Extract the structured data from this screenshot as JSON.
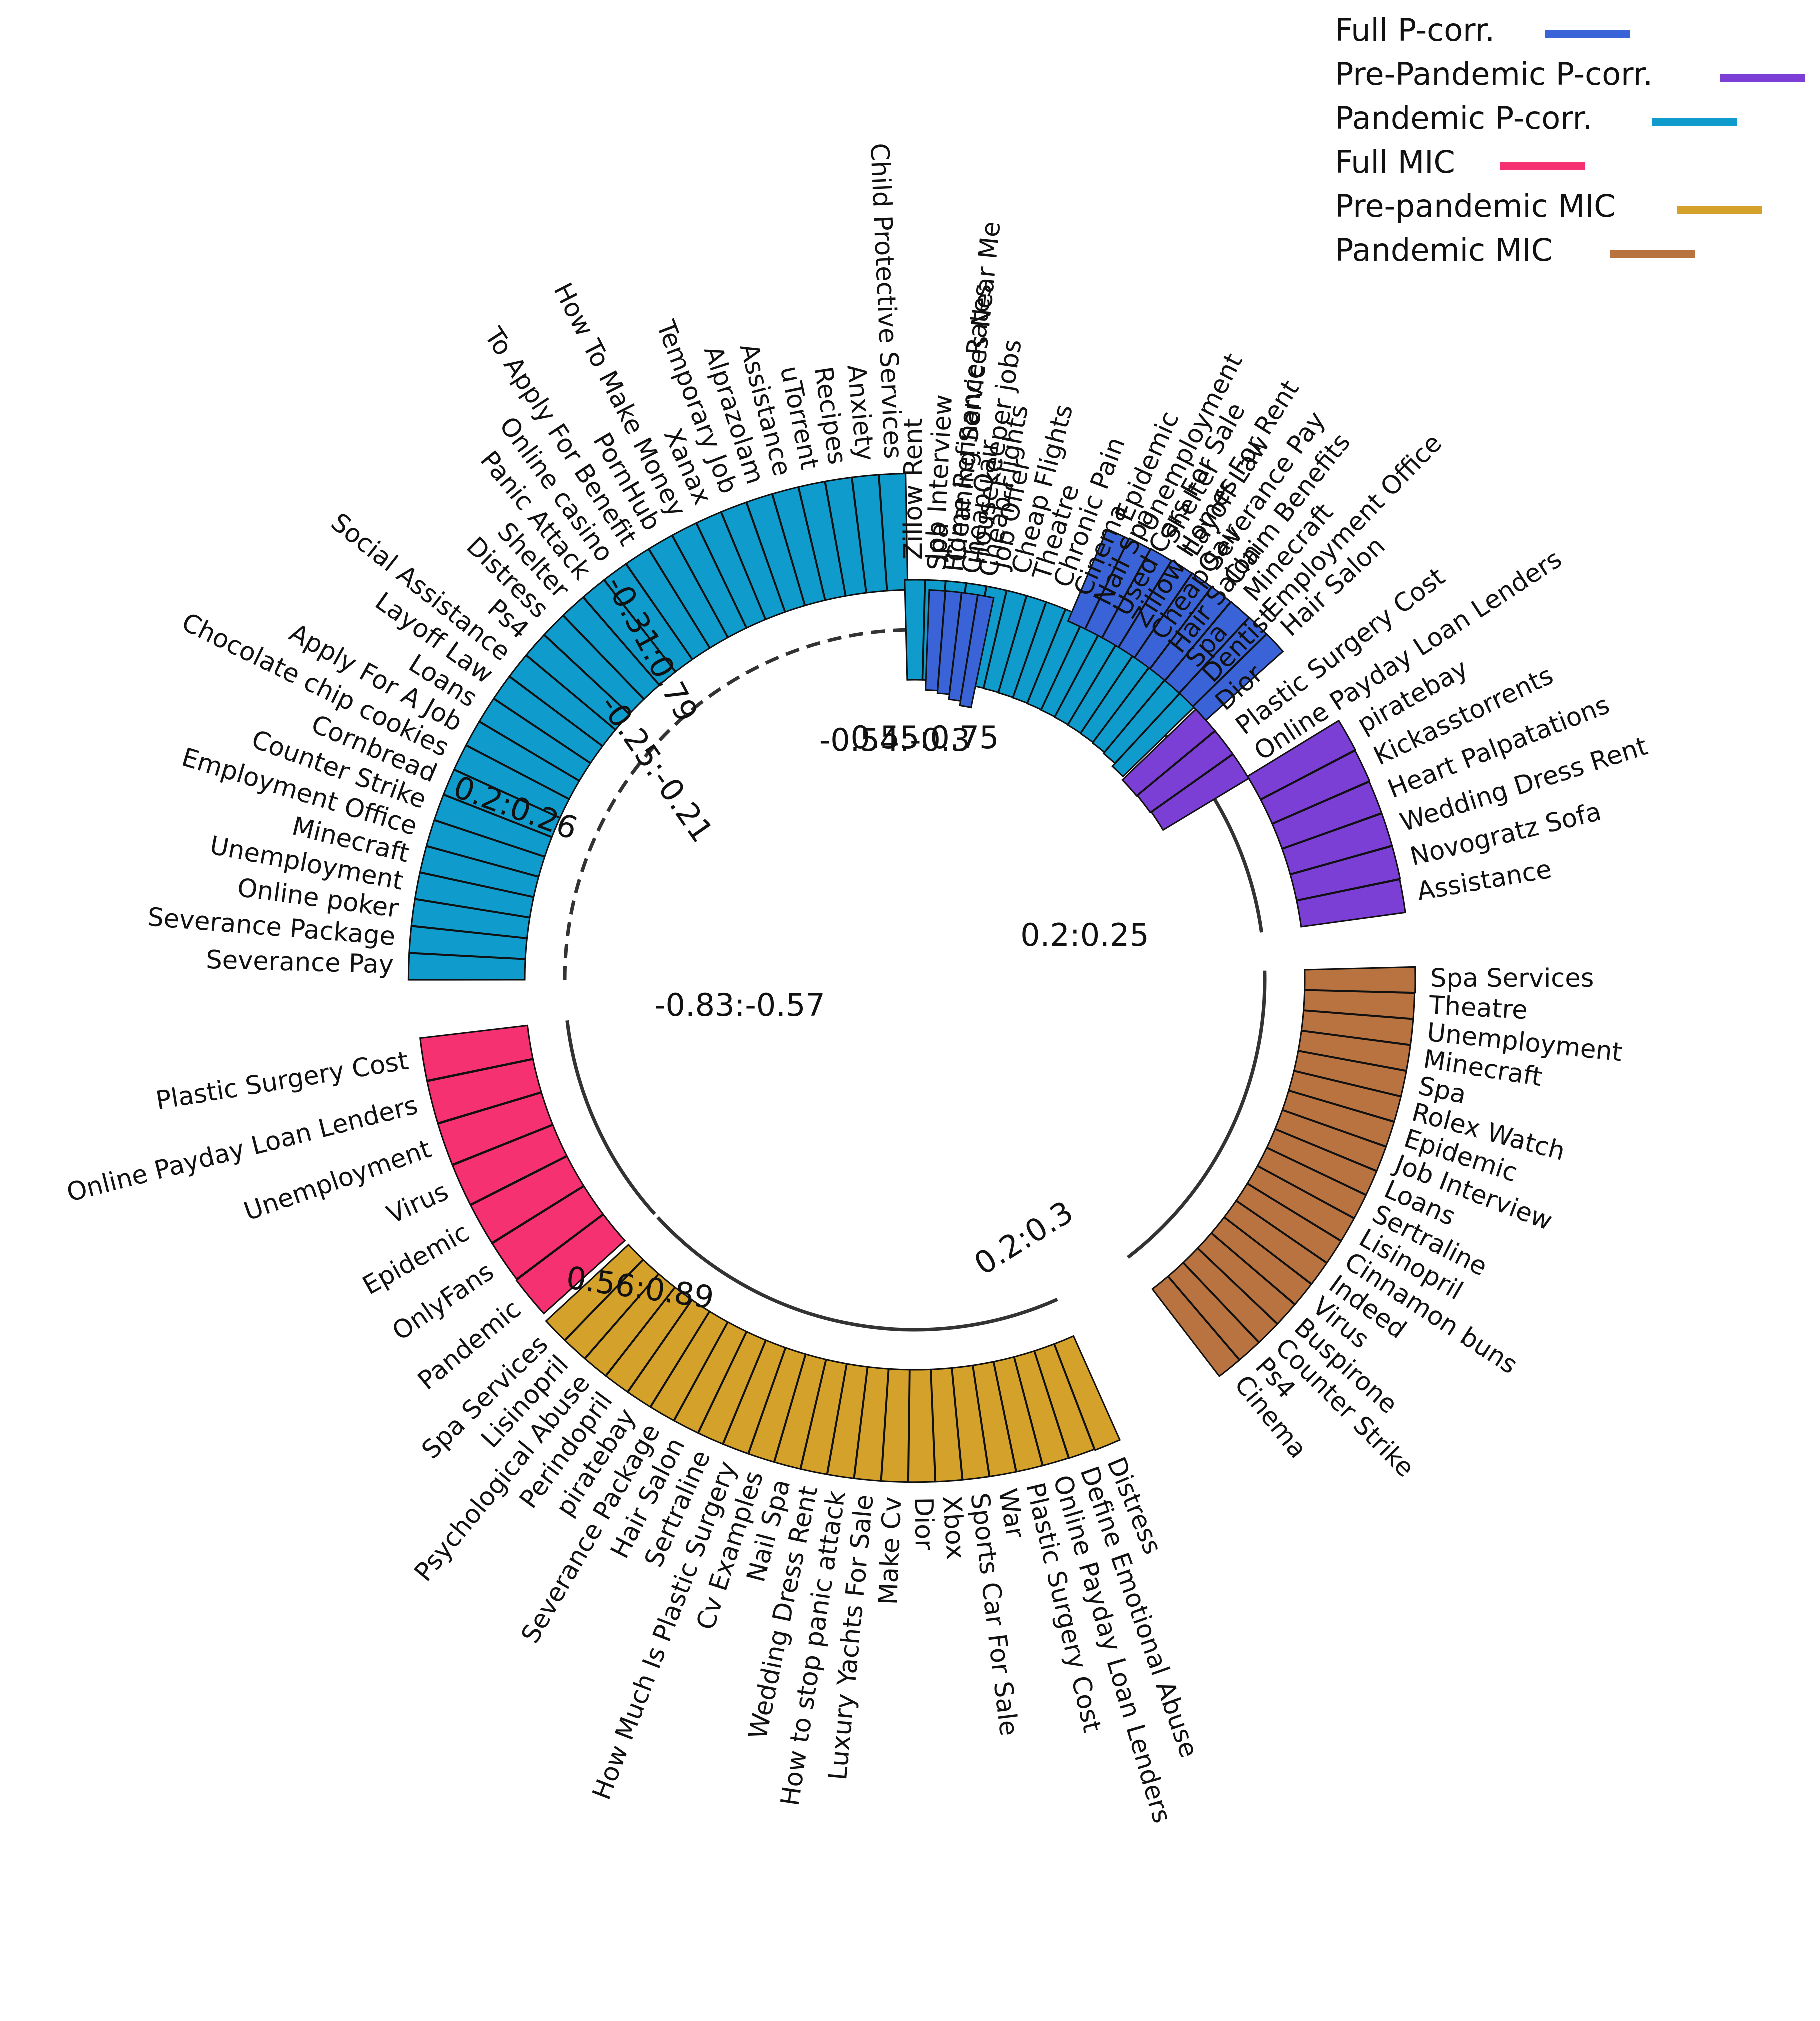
{
  "chart_data": {
    "type": "circular-bar",
    "title": "",
    "legend": {
      "placement": "top-right",
      "entries": [
        {
          "key": "full_pcorr",
          "label": "Full P-corr.",
          "color": "#3b63d8"
        },
        {
          "key": "pre_pcorr",
          "label": "Pre-Pandemic P-corr.",
          "color": "#7b3fd6"
        },
        {
          "key": "pan_pcorr",
          "label": "Pandemic P-corr.",
          "color": "#0f9bcc"
        },
        {
          "key": "full_mic",
          "label": "Full MIC",
          "color": "#f53171"
        },
        {
          "key": "pre_mic",
          "label": "Pre-pandemic MIC",
          "color": "#d4a22a"
        },
        {
          "key": "pan_mic",
          "label": "Pandemic MIC",
          "color": "#b87340"
        }
      ]
    },
    "groups": [
      {
        "key": "pan_mic",
        "range_label": "0.55:0.75",
        "range": [
          0.55,
          0.75
        ],
        "arc": "solid",
        "categories": [
          "Spa Services",
          "Theatre",
          "Unemployment",
          "Minecraft",
          "Spa",
          "Rolex Watch",
          "Epidemic",
          "Job Interview",
          "Loans",
          "Sertraline",
          "Lisinopril",
          "Cinnamon buns",
          "Indeed",
          "Virus",
          "Buspirone",
          "Counter Strike",
          "Ps4",
          "Cinema"
        ],
        "values": [
          0.75,
          0.74,
          0.74,
          0.74,
          0.74,
          0.74,
          0.74,
          0.74,
          0.74,
          0.74,
          0.74,
          0.74,
          0.74,
          0.74,
          0.74,
          0.74,
          0.74,
          0.74
        ]
      },
      {
        "key": "pre_mic",
        "range_label": "0.2:0.25",
        "range": [
          0.2,
          0.25
        ],
        "arc": "solid",
        "categories": [
          "Distress",
          "Define Emotional Abuse",
          "Online Payday Loan Lenders",
          "Plastic Surgery Cost",
          "War",
          "Sports Car For Sale",
          "Xbox",
          "Dior",
          "Make Cv",
          "Luxury Yachts For Sale",
          "How to stop panic attack",
          "Wedding Dress Rent",
          "Nail Spa",
          "Cv Examples",
          "How Much Is Plastic Surgery",
          "Sertraline",
          "Hair Salon",
          "Severance Package",
          "piratebay",
          "Perindopril",
          "Psychological Abuse",
          "Lisinopril",
          "Spa Services"
        ],
        "values": [
          0.25,
          0.246,
          0.245,
          0.245,
          0.245,
          0.245,
          0.245,
          0.245,
          0.245,
          0.245,
          0.245,
          0.245,
          0.245,
          0.245,
          0.245,
          0.245,
          0.245,
          0.245,
          0.245,
          0.245,
          0.245,
          0.245,
          0.245
        ]
      },
      {
        "key": "full_mic",
        "range_label": "0.2:0.3",
        "range": [
          0.2,
          0.3
        ],
        "arc": "solid",
        "categories": [
          "Pandemic",
          "OnlyFans",
          "Epidemic",
          "Virus",
          "Unemployment",
          "Online Payday Loan Lenders",
          "Plastic Surgery Cost"
        ],
        "values": [
          0.3,
          0.29,
          0.29,
          0.29,
          0.29,
          0.29,
          0.29
        ]
      },
      {
        "key": "pan_pcorr",
        "range_label": "0.56:0.89",
        "range": [
          0.56,
          0.89
        ],
        "arc": "dashed",
        "categories": [
          "Severance Pay",
          "Severance Package",
          "Online poker",
          "Unemployment",
          "Minecraft",
          "Employment Office",
          "Counter Strike",
          "Cornbread",
          "Chocolate chip cookies",
          "Apply For A Job",
          "Loans",
          "Layoff Law",
          "Social Assistance",
          "Ps4",
          "Distress",
          "Shelter",
          "Panic Attack",
          "Online casino",
          "To Apply For Benefit",
          "PornHub",
          "How To Make Money",
          "Xanax",
          "Temporary Job",
          "Alprazolam",
          "Assistance",
          "uTorrent",
          "Recipes",
          "Anxiety",
          "Child Protective Services"
        ],
        "values": [
          0.89,
          0.89,
          0.89,
          0.89,
          0.89,
          0.89,
          0.89,
          0.89,
          0.89,
          0.89,
          0.89,
          0.89,
          0.89,
          0.89,
          0.89,
          0.89,
          0.89,
          0.89,
          0.89,
          0.89,
          0.89,
          0.89,
          0.89,
          0.89,
          0.89,
          0.89,
          0.89,
          0.89,
          0.89
        ]
      },
      {
        "key": "pan_pcorr",
        "range_label": "-0.83:-0.57",
        "range": [
          -0.83,
          -0.57
        ],
        "arc": "dashed",
        "categories": [
          "Zillow Rent",
          "Job Interview",
          "Cleaning Services Near Me",
          "Housekeeper jobs",
          "Job Offer",
          "Cheap Flights",
          "Theatre",
          "Chronic Pain",
          "Cinema",
          "Nail Spa",
          "Used Cars For Sale",
          "Zillow Homes For Rent",
          "CheapOair",
          "Hair Salon",
          "Spa",
          "Dentist"
        ],
        "values": [
          -0.57,
          -0.57,
          -0.57,
          -0.57,
          -0.58,
          -0.59,
          -0.6,
          -0.61,
          -0.62,
          -0.63,
          -0.64,
          -0.65,
          -0.66,
          -0.68,
          -0.72,
          -0.83
        ]
      },
      {
        "key": "pre_pcorr",
        "range_label": "0.2:0.26",
        "range": [
          0.2,
          0.26
        ],
        "arc": "solid",
        "categories": [
          "piratebay",
          "Kickasstorrents",
          "Heart Palpatations",
          "Wedding Dress Rent",
          "Novogratz Sofa",
          "Assistance"
        ],
        "values": [
          0.26,
          0.255,
          0.25,
          0.25,
          0.25,
          0.245
        ]
      },
      {
        "key": "pre_pcorr",
        "range_label": "-0.25:-0.21",
        "range": [
          -0.25,
          -0.21
        ],
        "arc": "solid",
        "categories": [
          "Dior",
          "Plastic Surgery Cost",
          "Online Payday Loan Lenders"
        ],
        "values": [
          -0.25,
          -0.235,
          -0.21
        ]
      },
      {
        "key": "full_pcorr",
        "range_label": "-0.31:0.79",
        "range": [
          -0.31,
          0.79
        ],
        "arc": "solid",
        "categories": [
          "Epidemic",
          "Unemployment",
          "Shelter",
          "Layoff Law",
          "Severance Pay",
          "Claim Benefits",
          "Minecraft",
          "Employment Office",
          "Hair Salon"
        ],
        "values": [
          0.79,
          0.76,
          0.74,
          0.72,
          0.71,
          0.7,
          0.69,
          0.68,
          0.67
        ]
      },
      {
        "key": "full_pcorr",
        "range_label": "-0.54:-0.3",
        "range": [
          -0.54,
          -0.3
        ],
        "arc": "solid",
        "categories": [
          "Spa",
          "Home Refinance Rates",
          "CheapOair",
          "Cheap Flights"
        ],
        "values": [
          -0.3,
          -0.35,
          -0.45,
          -0.54
        ]
      }
    ]
  }
}
